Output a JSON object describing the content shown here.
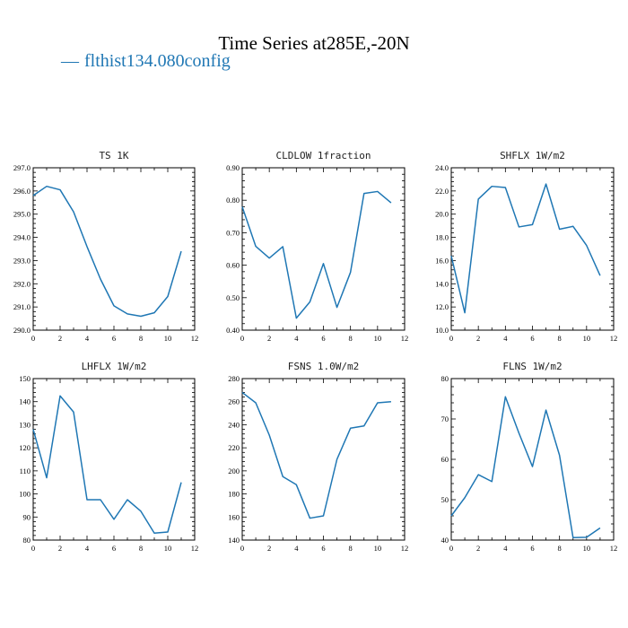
{
  "title": "Time Series at285E,-20N",
  "legend": {
    "label": "flthist134.080config",
    "color": "#1f77b4"
  },
  "chart_data": [
    {
      "type": "line",
      "title": "TS  1K",
      "x": [
        0,
        1,
        2,
        3,
        4,
        5,
        6,
        7,
        8,
        9,
        10,
        11
      ],
      "series": [
        {
          "values": [
            295.8,
            296.2,
            296.05,
            295.1,
            293.6,
            292.2,
            291.05,
            290.7,
            290.6,
            290.75,
            291.45,
            293.4
          ]
        }
      ],
      "xlim": [
        0,
        12
      ],
      "ylim": [
        290,
        297
      ],
      "xticks": [
        "0",
        "2",
        "4",
        "6",
        "8",
        "10",
        "12"
      ],
      "yticks": [
        "290.0",
        "291.0",
        "292.0",
        "293.0",
        "294.0",
        "295.0",
        "296.0",
        "297.0"
      ]
    },
    {
      "type": "line",
      "title": "CLDLOW  1fraction",
      "x": [
        0,
        1,
        2,
        3,
        4,
        5,
        6,
        7,
        8,
        9,
        10,
        11
      ],
      "series": [
        {
          "values": [
            0.78,
            0.658,
            0.622,
            0.657,
            0.437,
            0.487,
            0.605,
            0.47,
            0.578,
            0.821,
            0.827,
            0.792
          ]
        }
      ],
      "xlim": [
        0,
        12
      ],
      "ylim": [
        0.4,
        0.9
      ],
      "xticks": [
        "0",
        "2",
        "4",
        "6",
        "8",
        "10",
        "12"
      ],
      "yticks": [
        "0.40",
        "0.50",
        "0.60",
        "0.70",
        "0.80",
        "0.90"
      ]
    },
    {
      "type": "line",
      "title": "SHFLX  1W/m2",
      "x": [
        0,
        1,
        2,
        3,
        4,
        5,
        6,
        7,
        8,
        9,
        10,
        11
      ],
      "series": [
        {
          "values": [
            16.4,
            11.5,
            21.3,
            22.4,
            22.3,
            18.9,
            19.1,
            22.6,
            18.7,
            18.95,
            17.3,
            14.7
          ]
        }
      ],
      "xlim": [
        0,
        12
      ],
      "ylim": [
        10,
        24
      ],
      "xticks": [
        "0",
        "2",
        "4",
        "6",
        "8",
        "10",
        "12"
      ],
      "yticks": [
        "10.0",
        "12.0",
        "14.0",
        "16.0",
        "18.0",
        "20.0",
        "22.0",
        "24.0"
      ]
    },
    {
      "type": "line",
      "title": "LHFLX  1W/m2",
      "x": [
        0,
        1,
        2,
        3,
        4,
        5,
        6,
        7,
        8,
        9,
        10,
        11
      ],
      "series": [
        {
          "values": [
            128,
            107,
            142.5,
            135.5,
            97.5,
            97.5,
            89,
            97.5,
            92.5,
            83,
            83.5,
            105
          ]
        }
      ],
      "xlim": [
        0,
        12
      ],
      "ylim": [
        80,
        150
      ],
      "xticks": [
        "0",
        "2",
        "4",
        "6",
        "8",
        "10",
        "12"
      ],
      "yticks": [
        "80",
        "90",
        "100",
        "110",
        "120",
        "130",
        "140",
        "150"
      ]
    },
    {
      "type": "line",
      "title": "FSNS  1.0W/m2",
      "x": [
        0,
        1,
        2,
        3,
        4,
        5,
        6,
        7,
        8,
        9,
        10,
        11
      ],
      "series": [
        {
          "values": [
            268,
            259,
            231,
            195,
            188,
            159,
            161,
            210,
            237,
            239,
            259,
            260
          ]
        }
      ],
      "xlim": [
        0,
        12
      ],
      "ylim": [
        140,
        280
      ],
      "xticks": [
        "0",
        "2",
        "4",
        "6",
        "8",
        "10",
        "12"
      ],
      "yticks": [
        "140",
        "160",
        "180",
        "200",
        "220",
        "240",
        "260",
        "280"
      ]
    },
    {
      "type": "line",
      "title": "FLNS  1W/m2",
      "x": [
        0,
        1,
        2,
        3,
        4,
        5,
        6,
        7,
        8,
        9,
        10,
        11
      ],
      "series": [
        {
          "values": [
            46,
            50.5,
            56.2,
            54.5,
            75.5,
            66.5,
            58.2,
            72.2,
            61,
            40.6,
            40.7,
            43
          ]
        }
      ],
      "xlim": [
        0,
        12
      ],
      "ylim": [
        40,
        80
      ],
      "xticks": [
        "0",
        "2",
        "4",
        "6",
        "8",
        "10",
        "12"
      ],
      "yticks": [
        "40",
        "50",
        "60",
        "70",
        "80"
      ]
    }
  ]
}
